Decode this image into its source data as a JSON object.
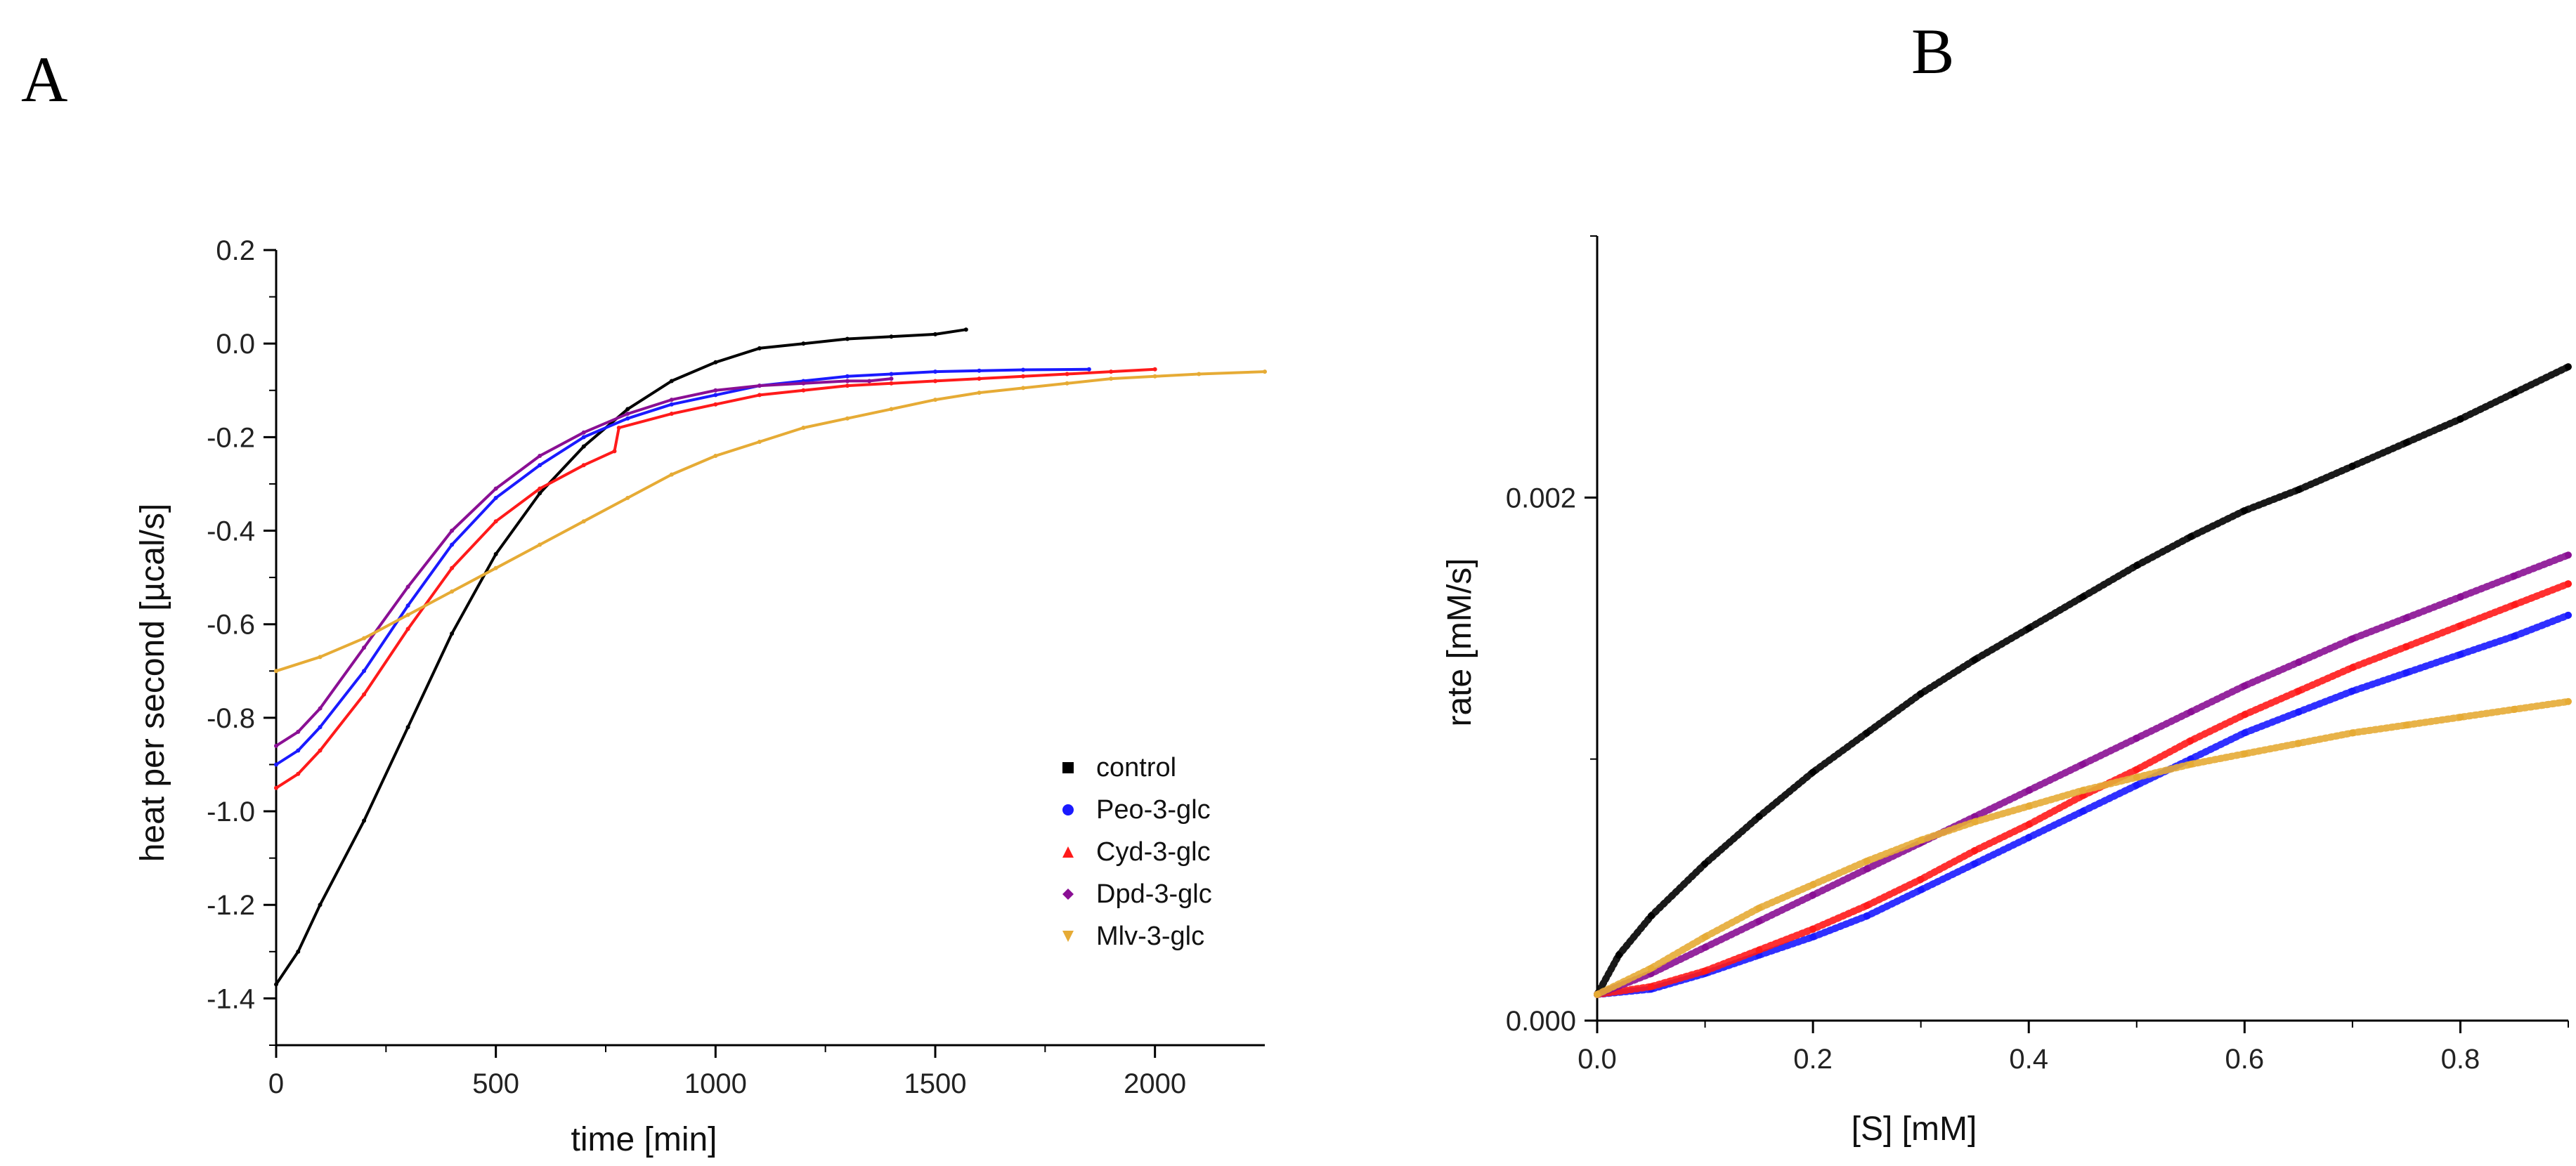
{
  "panels": {
    "a": "A",
    "b": "B"
  },
  "chart_data": [
    {
      "panel": "A",
      "type": "line",
      "title": "",
      "xlabel": "time [min]",
      "ylabel": "heat per second [µcal/s]",
      "xlim": [
        0,
        2250
      ],
      "ylim": [
        -1.5,
        0.2
      ],
      "xticks": [
        0,
        500,
        1000,
        1500,
        2000
      ],
      "xtick_labels": [
        "0",
        "500",
        "1000",
        "1500",
        "2000"
      ],
      "yticks": [
        0.2,
        0.0,
        -0.2,
        -0.4,
        -0.6,
        -0.8,
        -1.0,
        -1.2,
        -1.4
      ],
      "ytick_labels": [
        "0.2",
        "0.0",
        "-0.2",
        "-0.4",
        "-0.6",
        "-0.8",
        "-1.0",
        "-1.2",
        "-1.4"
      ],
      "legend_position": "bottom-right",
      "series": [
        {
          "name": "control",
          "color": "#000000",
          "marker": "square",
          "x": [
            0,
            50,
            100,
            200,
            300,
            400,
            500,
            600,
            700,
            800,
            900,
            1000,
            1100,
            1200,
            1300,
            1400,
            1500,
            1570
          ],
          "y": [
            -1.37,
            -1.3,
            -1.2,
            -1.02,
            -0.82,
            -0.62,
            -0.45,
            -0.32,
            -0.22,
            -0.14,
            -0.08,
            -0.04,
            -0.01,
            0.0,
            0.01,
            0.015,
            0.02,
            0.03
          ]
        },
        {
          "name": "Peo-3-glc",
          "color": "#1a1aff",
          "marker": "circle",
          "x": [
            0,
            50,
            100,
            200,
            300,
            400,
            500,
            600,
            700,
            800,
            900,
            1000,
            1100,
            1200,
            1300,
            1400,
            1500,
            1600,
            1700,
            1850
          ],
          "y": [
            -0.9,
            -0.87,
            -0.82,
            -0.7,
            -0.56,
            -0.43,
            -0.33,
            -0.26,
            -0.2,
            -0.16,
            -0.13,
            -0.11,
            -0.09,
            -0.08,
            -0.07,
            -0.065,
            -0.06,
            -0.058,
            -0.056,
            -0.055
          ]
        },
        {
          "name": "Cyd-3-glc",
          "color": "#ff1a1a",
          "marker": "triangle-up",
          "x": [
            0,
            50,
            100,
            200,
            300,
            400,
            500,
            600,
            700,
            770,
            780,
            900,
            1000,
            1100,
            1200,
            1300,
            1400,
            1500,
            1600,
            1700,
            1800,
            1900,
            2000
          ],
          "y": [
            -0.95,
            -0.92,
            -0.87,
            -0.75,
            -0.61,
            -0.48,
            -0.38,
            -0.31,
            -0.26,
            -0.23,
            -0.18,
            -0.15,
            -0.13,
            -0.11,
            -0.1,
            -0.09,
            -0.085,
            -0.08,
            -0.075,
            -0.07,
            -0.065,
            -0.06,
            -0.055
          ]
        },
        {
          "name": "Dpd-3-glc",
          "color": "#8a0f94",
          "marker": "diamond",
          "x": [
            0,
            50,
            100,
            200,
            300,
            400,
            500,
            600,
            700,
            800,
            900,
            1000,
            1100,
            1200,
            1300,
            1350,
            1400
          ],
          "y": [
            -0.86,
            -0.83,
            -0.78,
            -0.65,
            -0.52,
            -0.4,
            -0.31,
            -0.24,
            -0.19,
            -0.15,
            -0.12,
            -0.1,
            -0.09,
            -0.085,
            -0.08,
            -0.08,
            -0.075
          ]
        },
        {
          "name": "Mlv-3-glc",
          "color": "#e6ab35",
          "marker": "triangle-down",
          "x": [
            0,
            100,
            200,
            300,
            400,
            500,
            600,
            700,
            800,
            900,
            1000,
            1100,
            1200,
            1300,
            1400,
            1500,
            1600,
            1700,
            1800,
            1900,
            2000,
            2100,
            2250
          ],
          "y": [
            -0.7,
            -0.67,
            -0.63,
            -0.58,
            -0.53,
            -0.48,
            -0.43,
            -0.38,
            -0.33,
            -0.28,
            -0.24,
            -0.21,
            -0.18,
            -0.16,
            -0.14,
            -0.12,
            -0.105,
            -0.095,
            -0.085,
            -0.075,
            -0.07,
            -0.065,
            -0.06
          ]
        }
      ]
    },
    {
      "panel": "B",
      "type": "scatter",
      "title": "",
      "xlabel": "[S] [mM]",
      "ylabel": "rate [mM/s]",
      "xlim": [
        0,
        0.9
      ],
      "ylim": [
        0,
        0.003
      ],
      "xticks": [
        0.0,
        0.2,
        0.4,
        0.6,
        0.8
      ],
      "xtick_labels": [
        "0.0",
        "0.2",
        "0.4",
        "0.6",
        "0.8"
      ],
      "yticks": [
        0.0,
        0.002
      ],
      "ytick_labels": [
        "0.000",
        "0.002"
      ],
      "series": [
        {
          "name": "control",
          "color": "#000000",
          "x": [
            0,
            0.02,
            0.05,
            0.1,
            0.15,
            0.2,
            0.25,
            0.3,
            0.35,
            0.4,
            0.45,
            0.5,
            0.55,
            0.6,
            0.65,
            0.7,
            0.75,
            0.8,
            0.85,
            0.9
          ],
          "y": [
            0.0001,
            0.00025,
            0.0004,
            0.0006,
            0.00078,
            0.00095,
            0.0011,
            0.00125,
            0.00138,
            0.0015,
            0.00162,
            0.00174,
            0.00185,
            0.00195,
            0.00203,
            0.00212,
            0.00221,
            0.0023,
            0.0024,
            0.0025
          ]
        },
        {
          "name": "Peo-3-glc",
          "color": "#1a1aff",
          "x": [
            0,
            0.05,
            0.1,
            0.15,
            0.2,
            0.25,
            0.3,
            0.35,
            0.4,
            0.45,
            0.5,
            0.55,
            0.6,
            0.65,
            0.7,
            0.75,
            0.8,
            0.85,
            0.9
          ],
          "y": [
            0.0001,
            0.00012,
            0.00018,
            0.00025,
            0.00032,
            0.0004,
            0.0005,
            0.0006,
            0.0007,
            0.0008,
            0.0009,
            0.001,
            0.0011,
            0.00118,
            0.00126,
            0.00133,
            0.0014,
            0.00147,
            0.00155
          ]
        },
        {
          "name": "Cyd-3-glc",
          "color": "#ff1a1a",
          "x": [
            0,
            0.05,
            0.1,
            0.15,
            0.2,
            0.25,
            0.3,
            0.35,
            0.4,
            0.45,
            0.5,
            0.55,
            0.6,
            0.65,
            0.7,
            0.75,
            0.8,
            0.85,
            0.9
          ],
          "y": [
            0.0001,
            0.00013,
            0.00019,
            0.00027,
            0.00035,
            0.00044,
            0.00054,
            0.00065,
            0.00075,
            0.00086,
            0.00096,
            0.00107,
            0.00117,
            0.00126,
            0.00135,
            0.00143,
            0.00151,
            0.00159,
            0.00167
          ]
        },
        {
          "name": "Dpd-3-glc",
          "color": "#8a0f94",
          "x": [
            0,
            0.05,
            0.1,
            0.15,
            0.2,
            0.25,
            0.3,
            0.35,
            0.4,
            0.45,
            0.5,
            0.55,
            0.6,
            0.65,
            0.7,
            0.75,
            0.8,
            0.85,
            0.9
          ],
          "y": [
            0.0001,
            0.00018,
            0.00028,
            0.00038,
            0.00048,
            0.00058,
            0.00068,
            0.00078,
            0.00088,
            0.00098,
            0.00108,
            0.00118,
            0.00128,
            0.00137,
            0.00146,
            0.00154,
            0.00162,
            0.0017,
            0.00178
          ]
        },
        {
          "name": "Mlv-3-glc",
          "color": "#e6ab35",
          "x": [
            0,
            0.05,
            0.1,
            0.15,
            0.2,
            0.25,
            0.3,
            0.35,
            0.4,
            0.45,
            0.5,
            0.55,
            0.6,
            0.65,
            0.7,
            0.75,
            0.8,
            0.85,
            0.9
          ],
          "y": [
            0.0001,
            0.0002,
            0.00032,
            0.00043,
            0.00052,
            0.00061,
            0.00069,
            0.00076,
            0.00082,
            0.00088,
            0.00093,
            0.00098,
            0.00102,
            0.00106,
            0.0011,
            0.00113,
            0.00116,
            0.00119,
            0.00122
          ]
        }
      ]
    }
  ]
}
